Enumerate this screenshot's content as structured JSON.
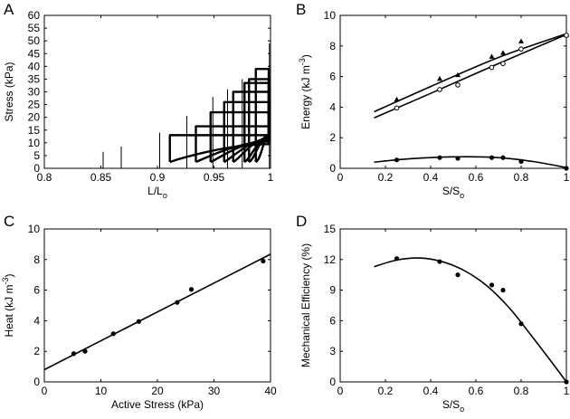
{
  "figure": {
    "panels": [
      "A",
      "B",
      "C",
      "D"
    ]
  },
  "chart_data": [
    {
      "panel": "A",
      "type": "line",
      "xlabel": "L/L",
      "xlabel_sub": "o",
      "ylabel": "Stress (kPa)",
      "xlim": [
        0.8,
        1.0
      ],
      "ylim": [
        0,
        60
      ],
      "xticks": [
        "0.8",
        "0.85",
        "0.9",
        "0.95",
        "1"
      ],
      "yticks": [
        "0",
        "5",
        "10",
        "15",
        "20",
        "25",
        "30",
        "35",
        "40",
        "45",
        "50",
        "55",
        "60"
      ],
      "spikes": [
        {
          "x": 0.852,
          "y": 6.5
        },
        {
          "x": 0.868,
          "y": 8.5
        },
        {
          "x": 0.902,
          "y": 14.0
        },
        {
          "x": 0.926,
          "y": 20.5
        },
        {
          "x": 0.949,
          "y": 28.0
        },
        {
          "x": 0.962,
          "y": 31.0
        },
        {
          "x": 0.975,
          "y": 35.0
        },
        {
          "x": 0.999,
          "y": 49.0
        }
      ],
      "loops": [
        {
          "start": 0.911,
          "plateau": 13.0,
          "end_low": 9.5
        },
        {
          "start": 0.934,
          "plateau": 16.5,
          "end_low": 10.5
        },
        {
          "start": 0.947,
          "plateau": 22.0,
          "end_low": 11.0
        },
        {
          "start": 0.959,
          "plateau": 26.0,
          "end_low": 11.5
        },
        {
          "start": 0.967,
          "plateau": 30.0,
          "end_low": 12.0
        },
        {
          "start": 0.977,
          "plateau": 33.5,
          "end_low": 12.5
        },
        {
          "start": 0.981,
          "plateau": 35.0,
          "end_low": 13.0
        },
        {
          "start": 0.987,
          "plateau": 39.0,
          "end_low": 13.0
        }
      ]
    },
    {
      "panel": "B",
      "type": "scatter",
      "xlabel": "S/S",
      "xlabel_sub": "o",
      "ylabel": "Energy  (kJ m",
      "ylabel_sup": "-3",
      "ylabel_end": ")",
      "xlim": [
        0,
        1
      ],
      "ylim": [
        0,
        10
      ],
      "xticks": [
        "0",
        "0.2",
        "0.4",
        "0.6",
        "0.8",
        "1"
      ],
      "yticks": [
        "0",
        "2",
        "4",
        "6",
        "8",
        "10"
      ],
      "series": [
        {
          "marker": "triangle",
          "x": [
            0.25,
            0.44,
            0.52,
            0.67,
            0.72,
            0.8,
            1.0
          ],
          "y": [
            4.5,
            5.85,
            6.1,
            7.3,
            7.55,
            8.3,
            8.7
          ]
        },
        {
          "marker": "open-circle",
          "x": [
            0.25,
            0.44,
            0.52,
            0.67,
            0.72,
            0.8,
            1.0
          ],
          "y": [
            3.95,
            5.15,
            5.45,
            6.6,
            6.85,
            7.8,
            8.7
          ]
        },
        {
          "marker": "filled-circle",
          "x": [
            0.25,
            0.44,
            0.52,
            0.67,
            0.72,
            0.8,
            1.0
          ],
          "y": [
            0.55,
            0.7,
            0.65,
            0.7,
            0.7,
            0.45,
            0.0
          ]
        }
      ],
      "fits": [
        {
          "x": [
            0.15,
            0.4,
            0.7,
            1.0
          ],
          "y": [
            3.7,
            5.35,
            7.25,
            8.8
          ]
        },
        {
          "x": [
            0.15,
            0.4,
            0.7,
            1.0
          ],
          "y": [
            3.3,
            4.9,
            6.85,
            8.75
          ]
        },
        {
          "x": [
            0.15,
            0.3,
            0.5,
            0.7,
            0.85,
            1.0
          ],
          "y": [
            0.4,
            0.62,
            0.75,
            0.7,
            0.45,
            0.05
          ]
        }
      ]
    },
    {
      "panel": "C",
      "type": "scatter",
      "xlabel": "Active Stress (kPa)",
      "ylabel": "Heat (kJ m",
      "ylabel_sup": "-3",
      "ylabel_end": ")",
      "xlim": [
        0,
        40
      ],
      "ylim": [
        0,
        10
      ],
      "xticks": [
        "0",
        "10",
        "20",
        "30",
        "40"
      ],
      "yticks": [
        "0",
        "2",
        "4",
        "6",
        "8",
        "10"
      ],
      "series": [
        {
          "marker": "filled-circle",
          "x": [
            5.2,
            7.2,
            12.2,
            16.7,
            23.5,
            26.0,
            38.7
          ],
          "y": [
            1.85,
            2.0,
            3.15,
            3.95,
            5.2,
            6.05,
            7.9
          ]
        }
      ],
      "fits": [
        {
          "x": [
            0,
            40
          ],
          "y": [
            0.8,
            8.35
          ]
        }
      ]
    },
    {
      "panel": "D",
      "type": "scatter",
      "xlabel": "S/S",
      "xlabel_sub": "o",
      "ylabel": "Mechanical Efficiency (%)",
      "xlim": [
        0,
        1
      ],
      "ylim": [
        0,
        15
      ],
      "xticks": [
        "0",
        "0.2",
        "0.4",
        "0.6",
        "0.8",
        "1"
      ],
      "yticks": [
        "0",
        "3",
        "6",
        "9",
        "12",
        "15"
      ],
      "series": [
        {
          "marker": "filled-circle",
          "x": [
            0.25,
            0.44,
            0.52,
            0.67,
            0.72,
            0.8,
            1.0
          ],
          "y": [
            12.1,
            11.8,
            10.5,
            9.5,
            9.0,
            5.7,
            0.0
          ]
        }
      ],
      "fits": [
        {
          "x": [
            0.15,
            0.25,
            0.35,
            0.45,
            0.55,
            0.65,
            0.75,
            0.85,
            0.95,
            1.0
          ],
          "y": [
            11.3,
            11.95,
            12.15,
            11.8,
            10.9,
            9.4,
            7.2,
            4.4,
            1.5,
            0.0
          ]
        }
      ]
    }
  ]
}
